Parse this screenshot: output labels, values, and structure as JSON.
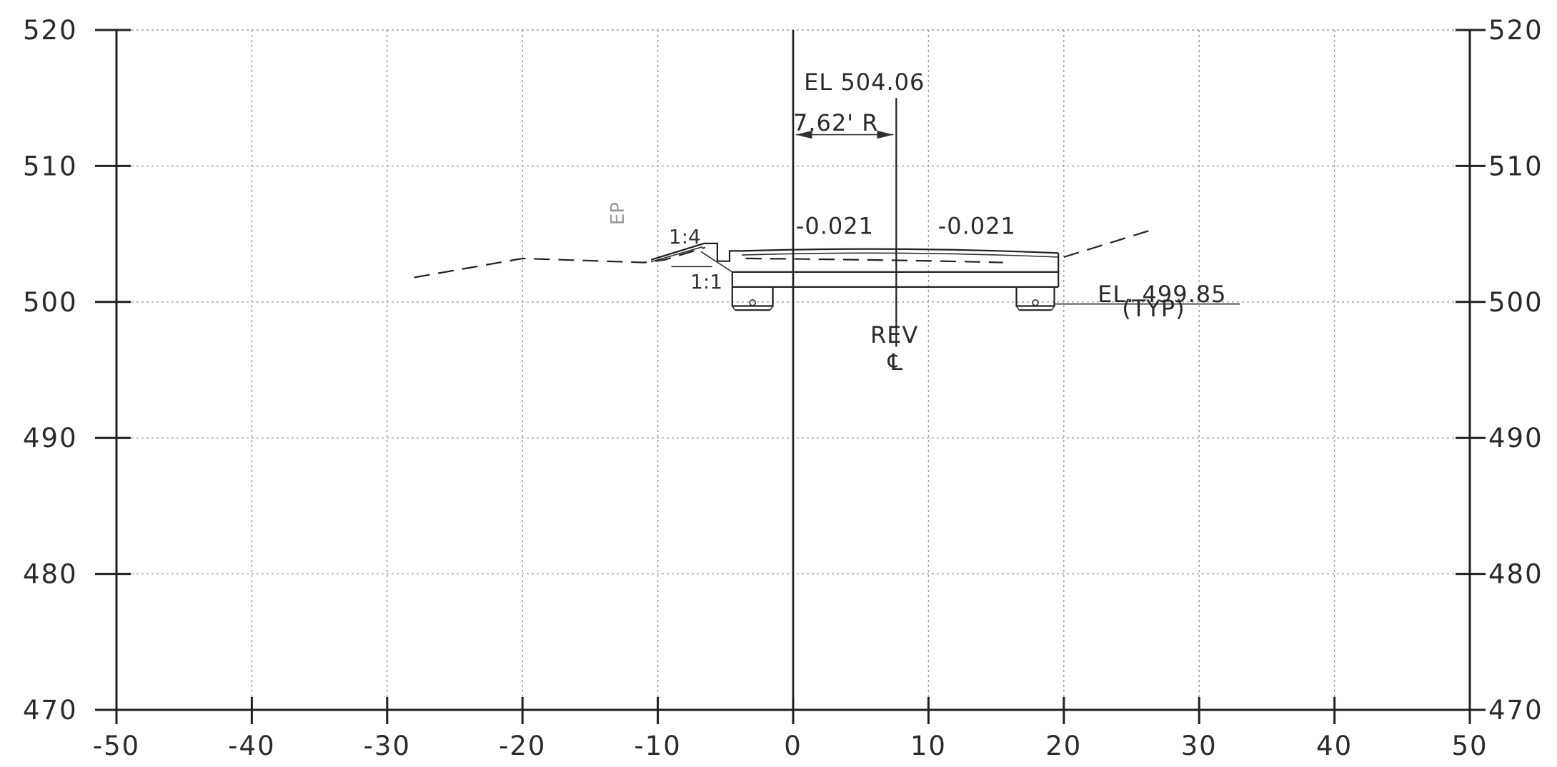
{
  "drawing": {
    "x_axis": {
      "min": -50,
      "max": 50,
      "tick_values": [
        -50,
        -40,
        -30,
        -20,
        -10,
        0,
        10,
        20,
        30,
        40,
        50
      ],
      "tick_labels": [
        "-50",
        "-40",
        "-30",
        "-20",
        "-10",
        "0",
        "10",
        "20",
        "30",
        "40",
        "50"
      ]
    },
    "y_axis": {
      "min": 470,
      "max": 520,
      "tick_values": [
        520,
        510,
        500,
        490,
        480,
        470
      ],
      "tick_labels": [
        "520",
        "510",
        "500",
        "490",
        "480",
        "470"
      ]
    },
    "grid": true,
    "colors": {
      "ink": "#202020",
      "grid": "#9c9c9c",
      "background": "#ffffff"
    }
  },
  "annotations": {
    "centerline_elevation": "EL 504.06",
    "offset": "7.62' R",
    "left_slope": "-0.021",
    "right_slope": "-0.021",
    "slope_1_4": "1:4",
    "slope_1_1": "1:1",
    "ep": "EP",
    "footing_elevation": "EL. 499.85",
    "footing_note": "(TYP)",
    "rev": "REV",
    "centerline_symbol": "℄"
  },
  "section": {
    "centerline_station": 7.62,
    "centerline_elevation": 504.06,
    "footing_elevation": 499.85,
    "existing_ground": [
      [
        -28,
        501.8
      ],
      [
        -20,
        503.2
      ],
      [
        -11,
        502.9
      ]
    ],
    "existing_ground_right": [
      [
        20,
        503.3
      ],
      [
        26.5,
        505.3
      ]
    ]
  }
}
